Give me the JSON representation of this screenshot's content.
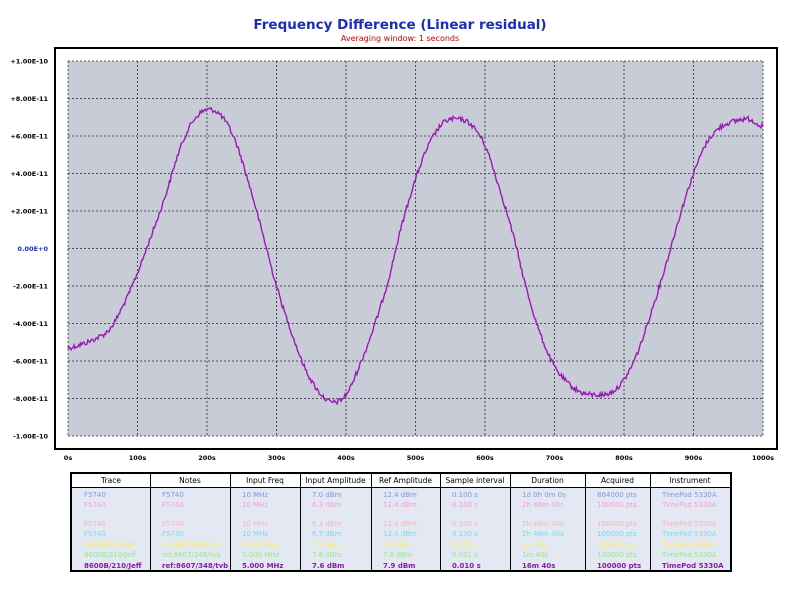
{
  "chart_data": {
    "type": "line",
    "title": "Frequency Difference (Linear residual)",
    "subtitle": "Averaging window: 1 seconds",
    "xlabel": "",
    "ylabel": "",
    "xlim": [
      0,
      1000
    ],
    "ylim": [
      -1e-10,
      1e-10
    ],
    "x_ticks": [
      "0s",
      "100s",
      "200s",
      "300s",
      "400s",
      "500s",
      "600s",
      "700s",
      "800s",
      "900s",
      "1000s"
    ],
    "y_ticks": [
      "+1.00E-10",
      "+8.00E-11",
      "+6.00E-11",
      "+4.00E-11",
      "+2.00E-11",
      "0.00E+0",
      "-2.00E-11",
      "-4.00E-11",
      "-6.00E-11",
      "-8.00E-11",
      "-1.00E-10"
    ],
    "grid": true,
    "background_color": "#c8ccd6",
    "line_color": "#9a1ab5",
    "series": [
      {
        "x": [
          0,
          20,
          40,
          60,
          80,
          100,
          120,
          140,
          160,
          180,
          200,
          220,
          240,
          260,
          280,
          300,
          320,
          340,
          360,
          380,
          400,
          420,
          440,
          460,
          480,
          500,
          520,
          540,
          560,
          580,
          600,
          620,
          640,
          660,
          680,
          700,
          720,
          740,
          760,
          780,
          800,
          820,
          840,
          860,
          880,
          900,
          920,
          940,
          960,
          980,
          1000
        ],
        "y": [
          -5.3e-11,
          -5.1e-11,
          -4.8e-11,
          -4.3e-11,
          -3e-11,
          -1.3e-11,
          7e-12,
          2.8e-11,
          5.2e-11,
          6.8e-11,
          7.4e-11,
          7.1e-11,
          5.8e-11,
          3.5e-11,
          8e-12,
          -2e-11,
          -4.3e-11,
          -6.3e-11,
          -7.6e-11,
          -8.2e-11,
          -7.8e-11,
          -6.2e-11,
          -4.2e-11,
          -1.8e-11,
          1.2e-11,
          3.7e-11,
          5.6e-11,
          6.7e-11,
          6.9e-11,
          6.6e-11,
          5.5e-11,
          3.3e-11,
          8e-12,
          -2.2e-11,
          -4.6e-11,
          -6.3e-11,
          -7.2e-11,
          -7.7e-11,
          -7.8e-11,
          -7.7e-11,
          -7e-11,
          -5.5e-11,
          -3.3e-11,
          -9e-12,
          1.7e-11,
          4e-11,
          5.7e-11,
          6.5e-11,
          6.8e-11,
          6.9e-11,
          6.5e-11
        ]
      }
    ]
  },
  "legend": {
    "headers": [
      "Trace",
      "Notes",
      "Input Freq",
      "Input Amplitude",
      "Ref Amplitude",
      "Sample interval",
      "Duration",
      "Acquired",
      "Instrument"
    ],
    "rows": [
      {
        "color": "#8f8fe0",
        "cells": [
          "F5740",
          "F5740",
          "10 MHz",
          "7.0 dBm",
          "12.4 dBm",
          "0.100 s",
          "1d 0h 0m 0s",
          "864000 pts",
          "TimePod 5330A"
        ]
      },
      {
        "color": "#f0a0d8",
        "cells": [
          "F5740",
          "F5740",
          "10 MHz",
          "6.3 dBm",
          "12.4 dBm",
          "0.100 s",
          "2h 46m 40s",
          "100000 pts",
          "TimePod 5330A"
        ]
      },
      {
        "color": "#ffb0b0",
        "cells": [
          "F5740",
          "F5740",
          "10 MHz",
          "6.3 dBm",
          "12.4 dBm",
          "0.100 s",
          "2h 46m 40s",
          "100000 pts",
          "TimePod 5330A"
        ]
      },
      {
        "color": "#70e0e8",
        "cells": [
          "F5740",
          "F5740",
          "10 MHz",
          "6.7 dBm",
          "12.4 dBm",
          "0.100 s",
          "2h 46m 40s",
          "100000 pts",
          "TimePod 5330A"
        ]
      },
      {
        "color": "#f0f070",
        "cells": [
          "8600B/210/Jeff",
          "ref:8607/348/tvb",
          "5.000 MHz",
          "7.5 dBm",
          "7.6 dBm",
          "0.001 s",
          "1m 40s",
          "100000 pts",
          "TimePod 5330A"
        ]
      },
      {
        "color": "#90e890",
        "cells": [
          "8600B/210/Jeff",
          "ref:8607/348/tvb",
          "5.000 MHz",
          "7.6 dBm",
          "7.6 dBm",
          "0.001 s",
          "1m 40s",
          "100000 pts",
          "TimePod 5330A"
        ]
      },
      {
        "color": "#8a1aa8",
        "cells": [
          "8600B/210/Jeff",
          "ref:8607/348/tvb",
          "5.000 MHz",
          "7.6 dBm",
          "7.9 dBm",
          "0.010 s",
          "16m 40s",
          "100000 pts",
          "TimePod 5330A"
        ]
      }
    ]
  }
}
